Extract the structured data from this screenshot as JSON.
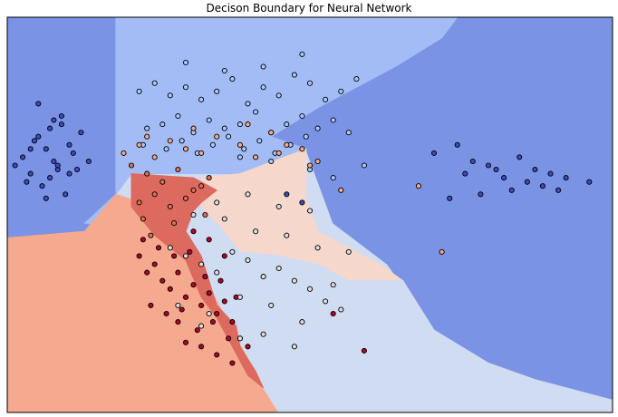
{
  "chart_data": {
    "type": "scatter",
    "title": "Decison Boundary for Neural Network",
    "xlabel": "",
    "ylabel": "",
    "xlim": [
      -3.0,
      4.8
    ],
    "ylim": [
      -2.9,
      1.9
    ],
    "axis_ticks": "off",
    "grid": false,
    "legend": "none",
    "colormap": "coolwarm",
    "regions": [
      {
        "name": "class-0-region",
        "color": "#7b93e4",
        "polygon": [
          [
            -3.0,
            1.9
          ],
          [
            -1.6,
            1.9
          ],
          [
            -1.6,
            -0.65
          ],
          [
            -2.0,
            -0.7
          ],
          [
            -3.0,
            -0.78
          ]
        ]
      },
      {
        "name": "class-0-region",
        "color": "#7b93e4",
        "polygon": [
          [
            2.8,
            1.9
          ],
          [
            4.8,
            1.9
          ],
          [
            4.8,
            -2.75
          ],
          [
            3.8,
            -2.5
          ],
          [
            3.2,
            -2.3
          ],
          [
            2.5,
            -1.9
          ],
          [
            1.9,
            -1.1
          ],
          [
            1.2,
            -0.6
          ],
          [
            0.85,
            0.3
          ],
          [
            0.4,
            0.45
          ],
          [
            1.0,
            0.8
          ],
          [
            2.0,
            1.3
          ],
          [
            2.6,
            1.65
          ]
        ]
      },
      {
        "name": "class-1-region",
        "color": "#a3bcf6",
        "polygon": [
          [
            -1.6,
            1.9
          ],
          [
            2.8,
            1.9
          ],
          [
            2.6,
            1.65
          ],
          [
            2.0,
            1.3
          ],
          [
            1.0,
            0.8
          ],
          [
            0.4,
            0.45
          ],
          [
            0.85,
            0.3
          ],
          [
            0.0,
            0.0
          ],
          [
            -1.4,
            0.0
          ],
          [
            -1.6,
            -0.25
          ],
          [
            -2.0,
            -0.6
          ],
          [
            -1.6,
            -0.65
          ]
        ]
      },
      {
        "name": "class-2-region",
        "color": "#f5aa90",
        "polygon": [
          [
            -3.0,
            -0.78
          ],
          [
            -2.0,
            -0.7
          ],
          [
            -1.6,
            -0.25
          ],
          [
            -0.8,
            -0.5
          ],
          [
            -0.5,
            -1.2
          ],
          [
            -0.1,
            -1.9
          ],
          [
            0.3,
            -2.6
          ],
          [
            0.5,
            -2.9
          ],
          [
            -3.0,
            -2.9
          ]
        ]
      },
      {
        "name": "class-3-region",
        "color": "#f6d7cb",
        "polygon": [
          [
            -0.5,
            -0.05
          ],
          [
            0.0,
            0.0
          ],
          [
            0.85,
            0.3
          ],
          [
            0.85,
            -0.3
          ],
          [
            1.0,
            -0.7
          ],
          [
            1.8,
            -1.1
          ],
          [
            2.1,
            -1.3
          ],
          [
            1.4,
            -1.3
          ],
          [
            1.0,
            -1.1
          ],
          [
            0.5,
            -1.0
          ],
          [
            0.0,
            -0.95
          ],
          [
            -0.3,
            -0.6
          ],
          [
            -0.5,
            -0.4
          ]
        ]
      },
      {
        "name": "class-4-region",
        "color": "#cfdcf2",
        "polygon": [
          [
            -0.6,
            -0.55
          ],
          [
            -0.3,
            -0.6
          ],
          [
            0.0,
            -0.95
          ],
          [
            0.5,
            -1.0
          ],
          [
            1.0,
            -1.1
          ],
          [
            1.4,
            -1.3
          ],
          [
            2.1,
            -1.3
          ],
          [
            2.5,
            -1.9
          ],
          [
            3.2,
            -2.3
          ],
          [
            3.8,
            -2.5
          ],
          [
            4.8,
            -2.75
          ],
          [
            4.8,
            -2.9
          ],
          [
            0.5,
            -2.9
          ],
          [
            0.3,
            -2.6
          ],
          [
            0.0,
            -2.0
          ],
          [
            -0.35,
            -1.3
          ],
          [
            -0.5,
            -0.9
          ]
        ]
      },
      {
        "name": "class-5-region",
        "color": "#dc6a5f",
        "polygon": [
          [
            -1.4,
            0.0
          ],
          [
            -0.6,
            -0.05
          ],
          [
            -0.3,
            -0.2
          ],
          [
            -0.5,
            -0.35
          ],
          [
            -0.6,
            -0.45
          ],
          [
            -0.7,
            -0.7
          ],
          [
            -0.5,
            -1.0
          ],
          [
            -0.4,
            -1.3
          ],
          [
            -0.3,
            -1.6
          ],
          [
            -0.05,
            -1.85
          ],
          [
            0.0,
            -2.1
          ],
          [
            0.2,
            -2.4
          ],
          [
            0.3,
            -2.6
          ],
          [
            0.1,
            -2.45
          ],
          [
            -0.1,
            -2.1
          ],
          [
            -0.3,
            -1.75
          ],
          [
            -0.5,
            -1.5
          ],
          [
            -0.7,
            -1.05
          ],
          [
            -1.1,
            -0.75
          ],
          [
            -1.4,
            -0.4
          ]
        ]
      }
    ],
    "series": [
      {
        "color": "#3b4cc0",
        "x": [
          -2.6,
          -2.5,
          -2.4,
          -2.7,
          -2.3,
          -2.8,
          -2.2,
          -2.55,
          -2.45,
          -2.35,
          -2.65,
          -2.25,
          -2.15,
          -2.9,
          -2.05,
          -2.5,
          -2.4,
          -2.3,
          -2.6,
          -2.7,
          -2.2,
          -2.35,
          -2.45,
          -1.95,
          -2.75,
          -2.1,
          2.8,
          3.0,
          3.2,
          3.4,
          3.6,
          3.8,
          4.0,
          4.2,
          4.5,
          3.1,
          3.5,
          3.9,
          2.5,
          2.9,
          3.3,
          3.7,
          4.1,
          2.7,
          0.6,
          0.8
        ],
        "y": [
          0.45,
          0.3,
          0.15,
          0.0,
          0.6,
          0.2,
          0.35,
          -0.15,
          0.55,
          0.05,
          0.4,
          -0.25,
          0.25,
          0.1,
          0.5,
          -0.3,
          0.65,
          0.7,
          0.85,
          0.3,
          0.0,
          0.1,
          -0.05,
          0.15,
          -0.1,
          0.05,
          0.35,
          0.15,
          0.1,
          -0.05,
          0.2,
          0.05,
          0.0,
          -0.05,
          -0.1,
          -0.25,
          -0.2,
          -0.15,
          0.25,
          0.0,
          0.05,
          -0.1,
          -0.2,
          -0.3,
          -0.25,
          -0.35
        ]
      },
      {
        "color": "#aac7fd",
        "x": [
          -1.3,
          -1.1,
          -0.9,
          -0.7,
          -0.5,
          -0.3,
          -0.1,
          0.1,
          0.3,
          0.5,
          0.7,
          0.9,
          1.1,
          1.3,
          -1.2,
          -1.0,
          -0.8,
          -0.6,
          -0.4,
          -0.2,
          0.0,
          0.2,
          0.4,
          0.6,
          0.8,
          1.0,
          1.2,
          1.4,
          -1.25,
          -0.95,
          -0.75,
          -0.55,
          -0.35,
          -0.15,
          0.05,
          0.25,
          0.45,
          0.65,
          0.85,
          -0.7,
          -0.2,
          0.3,
          0.8,
          1.5,
          0.0,
          0.4,
          0.9,
          1.2,
          1.6
        ],
        "y": [
          1.0,
          1.1,
          0.95,
          1.05,
          0.9,
          1.0,
          1.15,
          0.85,
          1.05,
          0.95,
          1.2,
          1.1,
          0.9,
          1.0,
          0.55,
          0.6,
          0.7,
          0.5,
          0.65,
          0.55,
          0.6,
          0.75,
          0.5,
          0.6,
          0.7,
          0.55,
          0.65,
          0.5,
          0.35,
          0.3,
          0.4,
          0.25,
          0.35,
          0.45,
          0.3,
          0.4,
          0.25,
          0.35,
          0.45,
          1.35,
          1.25,
          1.3,
          1.45,
          1.15,
          0.2,
          0.15,
          0.05,
          -0.05,
          0.1
        ]
      },
      {
        "color": "#f7a889",
        "x": [
          -1.5,
          -1.3,
          -1.1,
          -0.9,
          -0.7,
          -0.5,
          -0.3,
          0.0,
          0.2,
          0.4,
          0.6,
          0.8,
          1.0,
          -1.2,
          -0.6,
          0.1,
          0.5,
          0.9,
          1.3,
          2.3,
          2.6
        ],
        "y": [
          0.25,
          0.35,
          0.2,
          0.4,
          0.3,
          0.25,
          0.45,
          0.35,
          0.2,
          0.5,
          0.35,
          0.3,
          0.15,
          0.45,
          0.55,
          0.6,
          0.25,
          0.1,
          -0.2,
          -0.15,
          -0.95
        ]
      },
      {
        "color": "#dd6f5b",
        "x": [
          -1.4,
          -1.2,
          -1.0,
          -0.8,
          -0.6,
          -0.4,
          -1.3,
          -1.1,
          -0.9,
          -0.7,
          -0.5,
          -1.25,
          -0.85,
          -0.45,
          -1.15
        ],
        "y": [
          0.1,
          0.0,
          -0.1,
          0.05,
          -0.2,
          -0.05,
          -0.35,
          -0.25,
          -0.4,
          -0.3,
          -0.15,
          -0.55,
          -0.6,
          -0.5,
          -0.75
        ]
      },
      {
        "color": "#b40426",
        "x": [
          -1.3,
          -1.2,
          -1.1,
          -1.0,
          -0.9,
          -0.8,
          -0.7,
          -0.6,
          -0.5,
          -0.4,
          -0.3,
          -0.2,
          -0.1,
          0.0,
          -1.25,
          -1.05,
          -0.85,
          -0.65,
          -0.45,
          -0.25,
          -0.05,
          -1.15,
          -0.95,
          -0.75,
          -0.55,
          -0.35,
          -0.15,
          -0.7,
          -0.5,
          -0.3,
          -0.1,
          0.1,
          -0.6,
          -0.4,
          -0.2,
          -0.8,
          1.2,
          1.6
        ],
        "y": [
          -1.0,
          -1.2,
          -1.1,
          -1.3,
          -1.4,
          -1.2,
          -1.5,
          -1.35,
          -1.6,
          -1.45,
          -1.7,
          -1.55,
          -1.8,
          -2.0,
          -0.8,
          -0.9,
          -1.0,
          -0.95,
          -1.25,
          -1.3,
          -1.5,
          -1.6,
          -1.7,
          -1.65,
          -1.9,
          -1.8,
          -2.0,
          -2.05,
          -2.1,
          -2.2,
          -2.3,
          -2.1,
          -0.7,
          -0.8,
          -1.0,
          -1.8,
          -1.7,
          -2.15
        ]
      },
      {
        "color": "#dcdddd",
        "x": [
          -0.9,
          -0.7,
          -0.5,
          -0.3,
          -0.1,
          0.1,
          0.3,
          0.5,
          0.7,
          0.9,
          1.1,
          1.3,
          -0.8,
          -0.4,
          0.0,
          0.4,
          0.8,
          1.2,
          -0.6,
          -0.2,
          0.2,
          0.6,
          1.0,
          -0.3,
          0.1,
          0.5,
          0.9,
          1.4,
          -0.5,
          0.0,
          0.3,
          0.7
        ],
        "y": [
          -0.9,
          -1.0,
          -1.1,
          -1.2,
          -0.95,
          -1.05,
          -1.25,
          -1.15,
          -1.3,
          -1.4,
          -1.55,
          -1.65,
          -1.6,
          -1.7,
          -1.5,
          -1.6,
          -1.8,
          -1.35,
          -0.5,
          -0.55,
          -0.7,
          -0.75,
          -0.9,
          -0.35,
          -0.25,
          -0.4,
          -0.45,
          -0.95,
          -1.85,
          -2.0,
          -1.95,
          -2.1
        ]
      }
    ]
  }
}
